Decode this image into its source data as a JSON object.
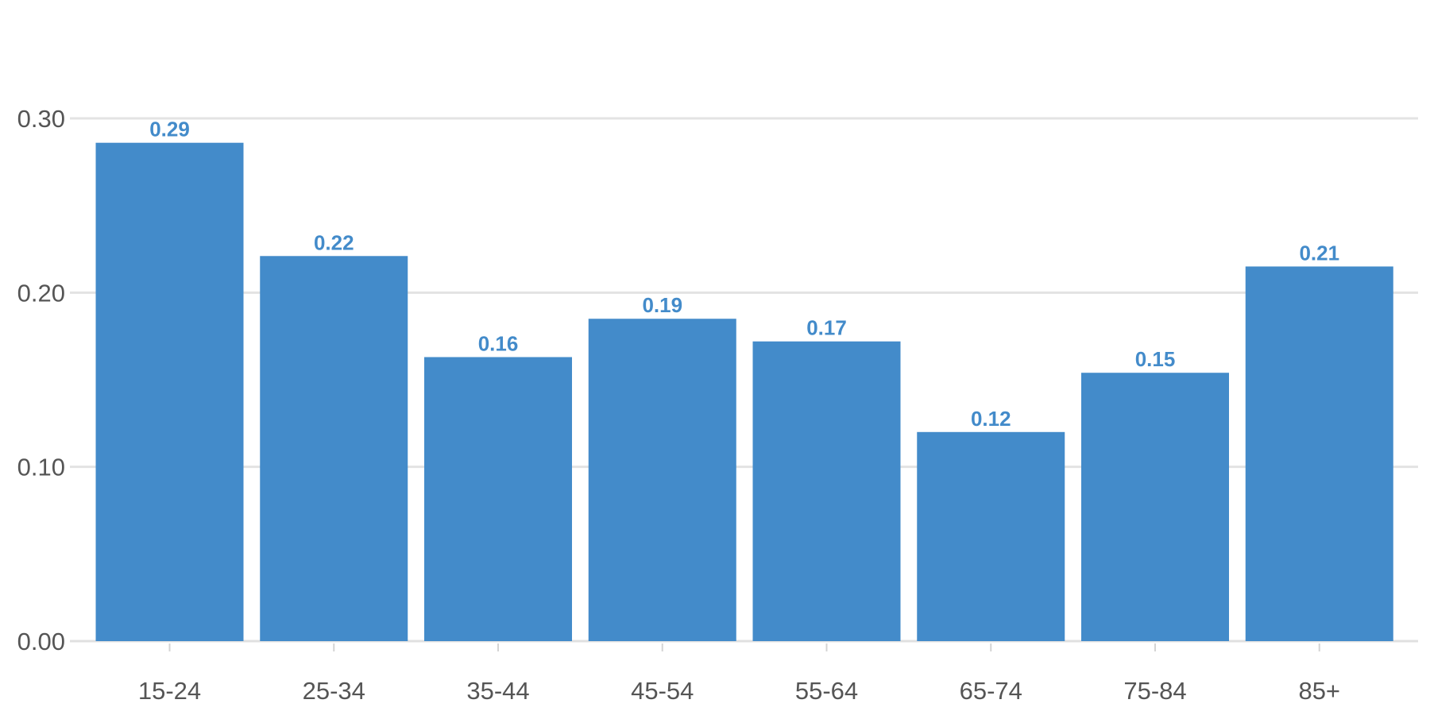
{
  "chart_data": {
    "type": "bar",
    "title": "",
    "xlabel": "",
    "ylabel": "",
    "categories": [
      "15-24",
      "25-34",
      "35-44",
      "45-54",
      "55-64",
      "65-74",
      "75-84",
      "85+"
    ],
    "values": [
      0.286,
      0.221,
      0.163,
      0.185,
      0.172,
      0.12,
      0.154,
      0.215
    ],
    "data_labels": [
      "0.29",
      "0.22",
      "0.16",
      "0.19",
      "0.17",
      "0.12",
      "0.15",
      "0.21"
    ],
    "ylim": [
      0,
      0.3
    ],
    "yticks": [
      0,
      0.1,
      0.2,
      0.3
    ],
    "ytick_labels": [
      "0.00",
      "0.10",
      "0.20",
      "0.30"
    ],
    "grid": true,
    "legend": "none",
    "colors": {
      "bar": "#438bca",
      "data_label": "#438bca",
      "gridline": "#e3e3e3",
      "tick_label": "#555555"
    }
  }
}
